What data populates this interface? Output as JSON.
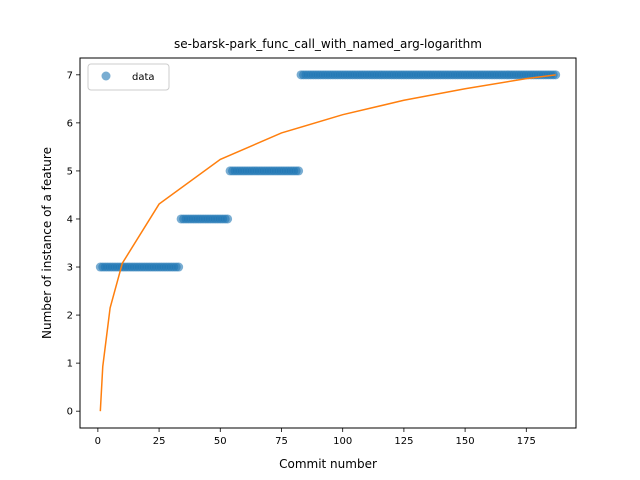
{
  "chart_data": {
    "type": "scatter",
    "title": "se-barsk-park_func_call_with_named_arg-logarithm",
    "xlabel": "Commit number",
    "ylabel": "Number of instance of a feature",
    "xlim": [
      -7.3,
      195.3
    ],
    "ylim": [
      -0.35,
      7.35
    ],
    "xticks": [
      0,
      25,
      50,
      75,
      100,
      125,
      150,
      175
    ],
    "yticks": [
      0,
      1,
      2,
      3,
      4,
      5,
      6,
      7
    ],
    "grid": false,
    "legend_position": "top-left",
    "series": [
      {
        "name": "data",
        "kind": "scatter",
        "color": "#1f77b4",
        "steps": [
          {
            "x_start": 1,
            "x_end": 33,
            "y": 3
          },
          {
            "x_start": 34,
            "x_end": 53,
            "y": 4
          },
          {
            "x_start": 54,
            "x_end": 82,
            "y": 5
          },
          {
            "x_start": 83,
            "x_end": 187,
            "y": 7
          }
        ]
      },
      {
        "kind": "line",
        "color": "#ff7f0e",
        "function": "logarithmic fit",
        "points": [
          [
            1,
            0.0
          ],
          [
            2,
            0.93
          ],
          [
            5,
            2.15
          ],
          [
            10,
            3.08
          ],
          [
            25,
            4.31
          ],
          [
            50,
            5.24
          ],
          [
            75,
            5.79
          ],
          [
            100,
            6.17
          ],
          [
            125,
            6.47
          ],
          [
            150,
            6.71
          ],
          [
            175,
            6.92
          ],
          [
            187,
            7.0
          ]
        ]
      }
    ]
  }
}
